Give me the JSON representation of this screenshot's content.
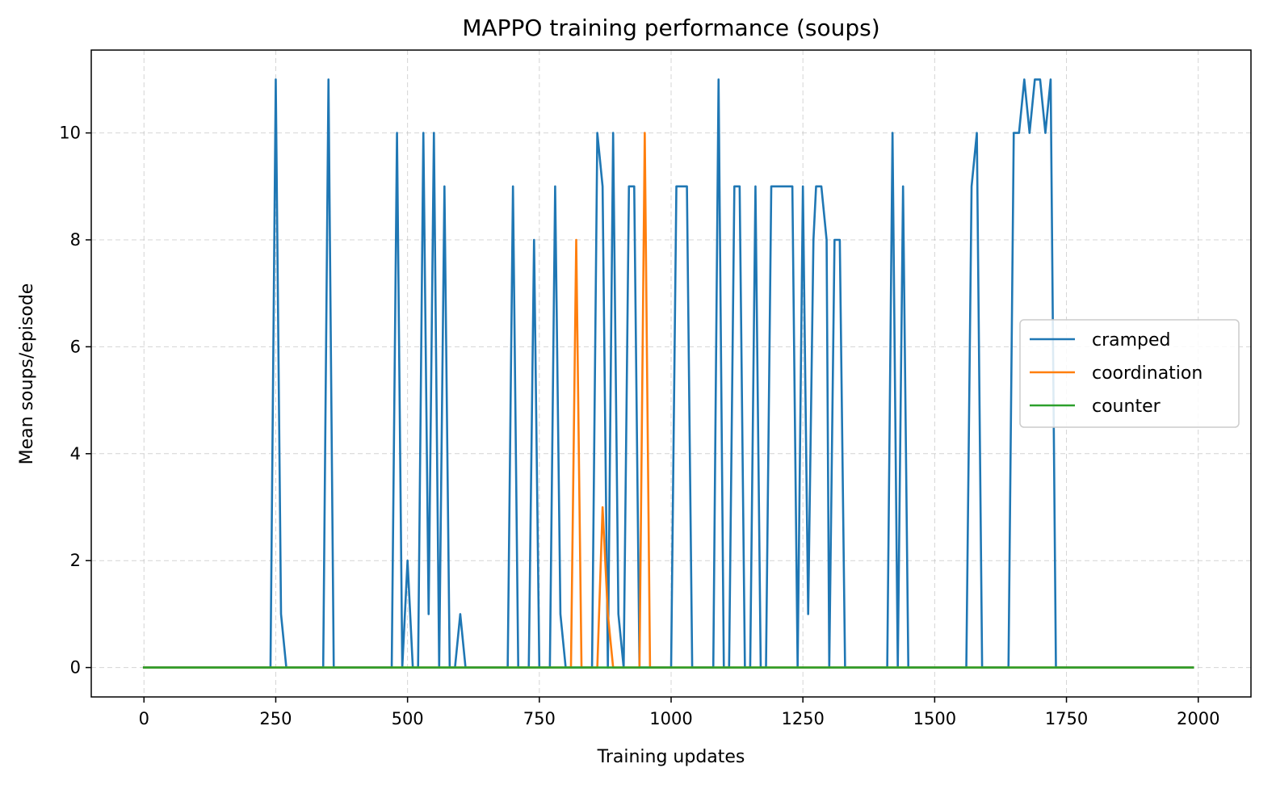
{
  "chart_data": {
    "type": "line",
    "title": "MAPPO training performance (soups)",
    "xlabel": "Training updates",
    "ylabel": "Mean soups/episode",
    "xlim": [
      -100,
      2100
    ],
    "ylim": [
      -0.55,
      11.55
    ],
    "xticks": [
      0,
      250,
      500,
      750,
      1000,
      1250,
      1500,
      1750,
      2000
    ],
    "xtick_labels": [
      "0",
      "250",
      "500",
      "750",
      "1000",
      "1250",
      "1500",
      "1750",
      "2000"
    ],
    "yticks": [
      0,
      2,
      4,
      6,
      8,
      10
    ],
    "ytick_labels": [
      "0",
      "2",
      "4",
      "6",
      "8",
      "10"
    ],
    "grid": true,
    "legend_position": "center-right",
    "series": [
      {
        "name": "cramped",
        "color": "#1f77b4",
        "points": [
          [
            0,
            0
          ],
          [
            240,
            0
          ],
          [
            250,
            11
          ],
          [
            260,
            1
          ],
          [
            270,
            0
          ],
          [
            340,
            0
          ],
          [
            350,
            11
          ],
          [
            360,
            0
          ],
          [
            470,
            0
          ],
          [
            480,
            10
          ],
          [
            490,
            0
          ],
          [
            500,
            2
          ],
          [
            510,
            0
          ],
          [
            520,
            0
          ],
          [
            530,
            10
          ],
          [
            540,
            1
          ],
          [
            550,
            10
          ],
          [
            560,
            0
          ],
          [
            570,
            9
          ],
          [
            580,
            0
          ],
          [
            590,
            0
          ],
          [
            600,
            1
          ],
          [
            610,
            0
          ],
          [
            690,
            0
          ],
          [
            700,
            9
          ],
          [
            710,
            0
          ],
          [
            730,
            0
          ],
          [
            740,
            8
          ],
          [
            750,
            0
          ],
          [
            770,
            0
          ],
          [
            780,
            9
          ],
          [
            790,
            1
          ],
          [
            800,
            0
          ],
          [
            850,
            0
          ],
          [
            860,
            10
          ],
          [
            870,
            9
          ],
          [
            880,
            0
          ],
          [
            890,
            10
          ],
          [
            900,
            1
          ],
          [
            910,
            0
          ],
          [
            920,
            9
          ],
          [
            930,
            9
          ],
          [
            940,
            0
          ],
          [
            1000,
            0
          ],
          [
            1010,
            9
          ],
          [
            1020,
            9
          ],
          [
            1030,
            9
          ],
          [
            1040,
            0
          ],
          [
            1080,
            0
          ],
          [
            1090,
            11
          ],
          [
            1100,
            0
          ],
          [
            1110,
            0
          ],
          [
            1120,
            9
          ],
          [
            1130,
            9
          ],
          [
            1140,
            0
          ],
          [
            1150,
            0
          ],
          [
            1160,
            9
          ],
          [
            1170,
            0
          ],
          [
            1180,
            0
          ],
          [
            1190,
            9
          ],
          [
            1200,
            9
          ],
          [
            1210,
            9
          ],
          [
            1220,
            9
          ],
          [
            1230,
            9
          ],
          [
            1240,
            0
          ],
          [
            1250,
            9
          ],
          [
            1260,
            1
          ],
          [
            1270,
            8
          ],
          [
            1275,
            9
          ],
          [
            1285,
            9
          ],
          [
            1295,
            8
          ],
          [
            1300,
            0
          ],
          [
            1310,
            8
          ],
          [
            1320,
            8
          ],
          [
            1330,
            0
          ],
          [
            1410,
            0
          ],
          [
            1420,
            10
          ],
          [
            1430,
            0
          ],
          [
            1440,
            9
          ],
          [
            1450,
            0
          ],
          [
            1560,
            0
          ],
          [
            1570,
            9
          ],
          [
            1580,
            10
          ],
          [
            1590,
            0
          ],
          [
            1640,
            0
          ],
          [
            1650,
            10
          ],
          [
            1660,
            10
          ],
          [
            1670,
            11
          ],
          [
            1680,
            10
          ],
          [
            1690,
            11
          ],
          [
            1700,
            11
          ],
          [
            1710,
            10
          ],
          [
            1720,
            11
          ],
          [
            1730,
            0
          ],
          [
            1990,
            0
          ]
        ]
      },
      {
        "name": "coordination",
        "color": "#ff7f0e",
        "points": [
          [
            0,
            0
          ],
          [
            810,
            0
          ],
          [
            820,
            8
          ],
          [
            830,
            0
          ],
          [
            860,
            0
          ],
          [
            870,
            3
          ],
          [
            880,
            1
          ],
          [
            890,
            0
          ],
          [
            940,
            0
          ],
          [
            950,
            10
          ],
          [
            960,
            0
          ],
          [
            1990,
            0
          ]
        ]
      },
      {
        "name": "counter",
        "color": "#2ca02c",
        "points": [
          [
            0,
            0
          ],
          [
            1990,
            0
          ]
        ]
      }
    ]
  }
}
